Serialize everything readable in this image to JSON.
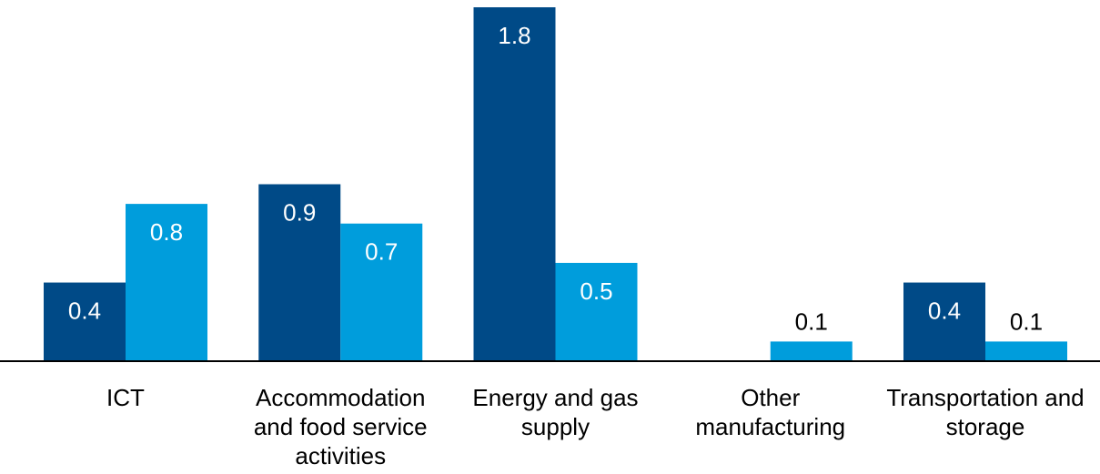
{
  "chart_data": {
    "type": "bar",
    "categories": [
      "ICT",
      "Accommodation and food service activities",
      "Energy and gas supply",
      "Other manufacturing",
      "Transportation and storage"
    ],
    "series": [
      {
        "color": "#004a87",
        "values": [
          0.4,
          0.9,
          1.8,
          null,
          0.4
        ]
      },
      {
        "color": "#009ddc",
        "values": [
          0.8,
          0.7,
          0.5,
          0.1,
          0.1
        ]
      }
    ],
    "ylim": [
      0,
      1.8
    ]
  }
}
